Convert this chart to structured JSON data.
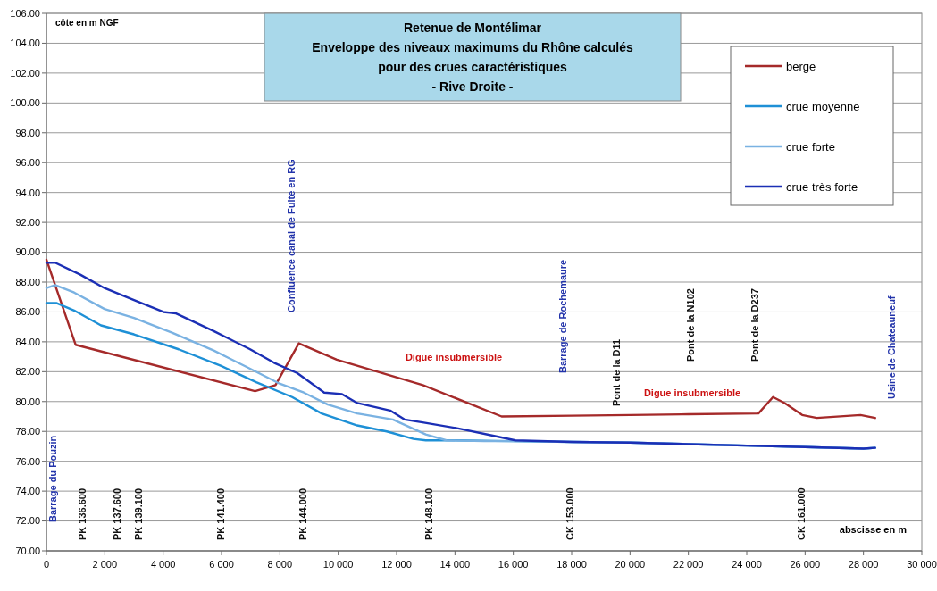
{
  "chart_data": {
    "type": "line",
    "title": "Retenue de Montélimar",
    "subtitle": "Enveloppe des niveaux maximums du Rhône calculés\npour des crues caractéristiques\n- Rive Droite -",
    "xlabel": "abscisse en m",
    "ylabel": "côte en m NGF",
    "xlim": [
      0,
      30000
    ],
    "xticks": [
      0,
      {
        "value": 2000,
        "label": "2 000"
      },
      {
        "value": 4000,
        "label": "4 000"
      },
      {
        "value": 6000,
        "label": "6 000"
      },
      {
        "value": 8000,
        "label": "8 000"
      },
      {
        "value": 10000,
        "label": "10 000"
      },
      {
        "value": 12000,
        "label": "12 000"
      },
      {
        "value": 14000,
        "label": "14 000"
      },
      {
        "value": 16000,
        "label": "16 000"
      },
      {
        "value": 18000,
        "label": "18 000"
      },
      {
        "value": 20000,
        "label": "20 000"
      },
      {
        "value": 22000,
        "label": "22 000"
      },
      {
        "value": 24000,
        "label": "24 000"
      },
      {
        "value": 26000,
        "label": "26 000"
      },
      {
        "value": 28000,
        "label": "28 000"
      },
      {
        "value": 30000,
        "label": "30 000"
      }
    ],
    "ylim": [
      70,
      106
    ],
    "yticks": [
      {
        "value": 70,
        "label": "70.00"
      },
      {
        "value": 72,
        "label": "72.00"
      },
      {
        "value": 74,
        "label": "74.00"
      },
      {
        "value": 76,
        "label": "76.00"
      },
      {
        "value": 78,
        "label": "78.00"
      },
      {
        "value": 80,
        "label": "80.00"
      },
      {
        "value": 82,
        "label": "82.00"
      },
      {
        "value": 84,
        "label": "84.00"
      },
      {
        "value": 86,
        "label": "86.00"
      },
      {
        "value": 88,
        "label": "88.00"
      },
      {
        "value": 90,
        "label": "90.00"
      },
      {
        "value": 92,
        "label": "92.00"
      },
      {
        "value": 94,
        "label": "94.00"
      },
      {
        "value": 96,
        "label": "96.00"
      },
      {
        "value": 98,
        "label": "98.00"
      },
      {
        "value": 100,
        "label": "100.00"
      },
      {
        "value": 102,
        "label": "102.00"
      },
      {
        "value": 104,
        "label": "104.00"
      },
      {
        "value": 106,
        "label": "106.00"
      }
    ],
    "grid": "y",
    "legend": "top right",
    "marker": "none",
    "line_style": "solid",
    "series": [
      {
        "name": "berge",
        "color": "#a52a2a",
        "x": [
          0,
          1000,
          7150,
          7850,
          8650,
          9950,
          12900,
          15600,
          18000,
          20000,
          22000,
          24400,
          24900,
          25300,
          25900,
          26400,
          27900,
          28400
        ],
        "values": [
          89.5,
          83.8,
          80.7,
          81.1,
          83.9,
          82.8,
          81.1,
          79.0,
          79.05,
          79.1,
          79.15,
          79.2,
          80.3,
          79.9,
          79.1,
          78.9,
          79.1,
          78.9
        ]
      },
      {
        "name": "crue moyenne",
        "color": "#1e90d6",
        "x": [
          0,
          340,
          950,
          1870,
          3000,
          4530,
          5970,
          7190,
          8420,
          9430,
          10650,
          11660,
          12580,
          13000,
          14000,
          16000,
          18000,
          20000,
          22000,
          24000,
          26000,
          28000,
          28400
        ],
        "values": [
          86.6,
          86.6,
          86.1,
          85.1,
          84.5,
          83.5,
          82.4,
          81.3,
          80.3,
          79.2,
          78.4,
          78.0,
          77.5,
          77.4,
          77.4,
          77.35,
          77.3,
          77.25,
          77.15,
          77.05,
          76.95,
          76.85,
          76.9
        ]
      },
      {
        "name": "crue forte",
        "color": "#7ab2e2",
        "x": [
          0,
          300,
          950,
          1990,
          3000,
          4320,
          5750,
          6980,
          7990,
          8820,
          9640,
          10650,
          11870,
          13000,
          13710,
          15000,
          16000,
          18000,
          20000,
          22000,
          24000,
          26000,
          28000,
          28400
        ],
        "values": [
          87.6,
          87.8,
          87.3,
          86.2,
          85.6,
          84.6,
          83.4,
          82.2,
          81.2,
          80.6,
          79.8,
          79.2,
          78.8,
          77.8,
          77.4,
          77.35,
          77.35,
          77.3,
          77.25,
          77.15,
          77.05,
          76.95,
          76.85,
          76.9
        ]
      },
      {
        "name": "crue très forte",
        "color": "#1b2fb5",
        "x": [
          0,
          300,
          1160,
          1990,
          3000,
          4010,
          4440,
          5750,
          6980,
          7800,
          8600,
          9520,
          10130,
          10650,
          11780,
          12270,
          12890,
          14110,
          15340,
          16070,
          18000,
          20000,
          22000,
          24000,
          26000,
          28000,
          28400
        ],
        "values": [
          89.3,
          89.3,
          88.5,
          87.6,
          86.8,
          86.0,
          85.9,
          84.7,
          83.5,
          82.6,
          81.9,
          80.6,
          80.5,
          79.9,
          79.4,
          78.8,
          78.6,
          78.2,
          77.7,
          77.4,
          77.3,
          77.25,
          77.15,
          77.05,
          76.95,
          76.85,
          76.9
        ]
      }
    ],
    "annotations": [
      "Digue insubmersible",
      "Digue insubmersible",
      "Barrage du Pouzin",
      "Confluence canal de Fuite en RG",
      "Barrage de Rochemaure",
      "Usine de Chateauneuf",
      "PK 136.600",
      "PK 137.600",
      "PK 139.100",
      "PK 141.400",
      "PK 144.000",
      "PK 148.100",
      "CK 153.000",
      "CK 161.000",
      "Pont de la D11",
      "Pont de la N102",
      "Pont de la D237"
    ]
  }
}
